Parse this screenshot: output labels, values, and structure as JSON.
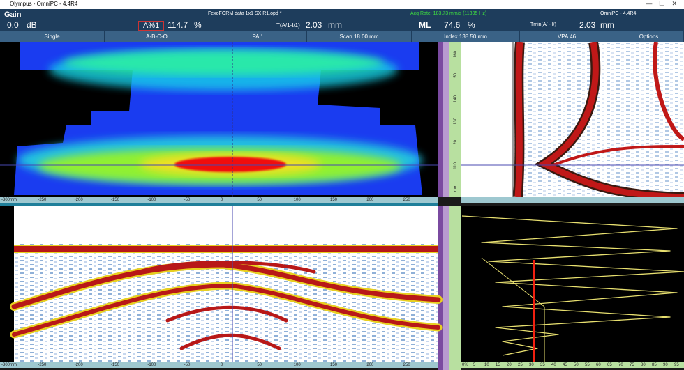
{
  "window": {
    "title": "Olympus - OmniPC - 4.4R4"
  },
  "status": {
    "gain_label": "Gain",
    "file": "FexoFORM data 1x1 SX R1.opd *",
    "acq_rate": "Acq Rate: 183.73 mm/s (11395 Hz)",
    "product": "OmniPC - 4.4R4"
  },
  "readouts": {
    "gain_value": "0.0",
    "gain_unit": "dB",
    "gate_label": "A%1",
    "gate_value": "114.7",
    "gate_unit": "%",
    "t_label": "T(A/1-I/1)",
    "t_value": "2.03",
    "t_unit": "mm",
    "ml_label": "ML",
    "ml_value": "74.6",
    "ml_unit": "%",
    "tmin_label": "Tmin(A/ - I/)",
    "tmin_value": "2.03",
    "tmin_unit": "mm"
  },
  "toolbar": [
    "Single",
    "A-B-C-O",
    "PA 1",
    "Scan 18.00 mm",
    "Index 138.50 mm",
    "VPA 46",
    "Options"
  ],
  "cscan_ruler": [
    "-300mm",
    "-250",
    "-200",
    "-150",
    "-100",
    "-50",
    "0",
    "50",
    "100",
    "150",
    "200",
    "250"
  ],
  "bscan_ruler": [
    "-300mm",
    "-250",
    "-200",
    "-150",
    "-100",
    "-50",
    "0",
    "50",
    "100",
    "150",
    "200",
    "250"
  ],
  "side_ruler": [
    "160",
    "150",
    "140",
    "130",
    "120",
    "110",
    "mm"
  ],
  "ascan_ruler": [
    "0%",
    "5",
    "10",
    "15",
    "20",
    "25",
    "30",
    "35",
    "40",
    "45",
    "50",
    "55",
    "60",
    "65",
    "70",
    "75",
    "80",
    "85",
    "90",
    "95"
  ]
}
